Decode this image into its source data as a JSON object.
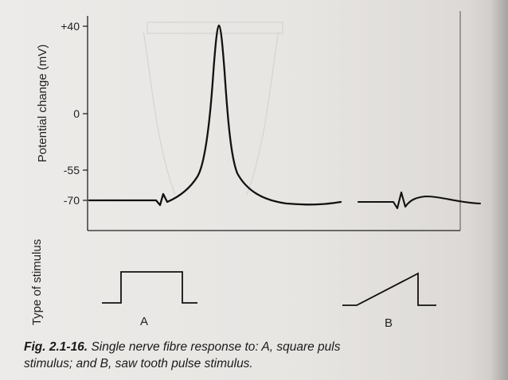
{
  "figure": {
    "y_axis_label": "Potential change (mV)",
    "y_ticks": [
      "+40",
      "0",
      "-55",
      "-70"
    ],
    "stimulus_axis_label": "Type of stimulus",
    "stimulus_a_label": "A",
    "stimulus_b_label": "B"
  },
  "caption": {
    "fig_id": "Fig. 2.1-16.",
    "line1": "Single nerve fibre response to: A, square puls",
    "line2": "stimulus; and B, saw tooth pulse stimulus."
  },
  "chart_data": {
    "type": "line",
    "ylabel": "Potential change (mV)",
    "yticks": [
      40,
      0,
      -55,
      -70
    ],
    "series": [
      {
        "values_note_free": true,
        "y": [
          -70,
          -70,
          -70,
          -70,
          -62,
          -45,
          40,
          -45,
          -62,
          -68,
          -70,
          -70
        ]
      },
      {
        "y": [
          -70,
          -70,
          -69,
          -70,
          -70
        ]
      }
    ]
  }
}
